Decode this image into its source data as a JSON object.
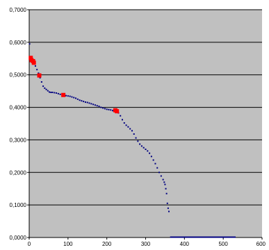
{
  "chart_data": {
    "type": "scatter",
    "title": "",
    "xlabel": "",
    "ylabel": "",
    "xlim": [
      0,
      600
    ],
    "ylim": [
      0,
      0.7
    ],
    "x_ticks": [
      "0",
      "100",
      "200",
      "300",
      "400",
      "500",
      "600"
    ],
    "y_ticks": [
      "0,0000",
      "0,1000",
      "0,2000",
      "0,3000",
      "0,4000",
      "0,5000",
      "0,6000",
      "0,7000"
    ],
    "grid": "horizontal",
    "legend": "none",
    "plot_background": "#c0c0c0",
    "series": [
      {
        "color": "#000080",
        "marker": "small-dot",
        "points": [
          [
            1,
            0.595
          ],
          [
            4,
            0.556
          ],
          [
            8,
            0.548
          ],
          [
            12,
            0.536
          ],
          [
            16,
            0.527
          ],
          [
            20,
            0.516
          ],
          [
            24,
            0.505
          ],
          [
            28,
            0.491
          ],
          [
            32,
            0.478
          ],
          [
            36,
            0.465
          ],
          [
            40,
            0.459
          ],
          [
            44,
            0.455
          ],
          [
            48,
            0.451
          ],
          [
            52,
            0.447
          ],
          [
            56,
            0.446
          ],
          [
            60,
            0.446
          ],
          [
            65,
            0.445
          ],
          [
            70,
            0.444
          ],
          [
            75,
            0.442
          ],
          [
            80,
            0.44
          ],
          [
            85,
            0.438
          ],
          [
            90,
            0.437
          ],
          [
            95,
            0.436
          ],
          [
            100,
            0.435
          ],
          [
            105,
            0.434
          ],
          [
            110,
            0.432
          ],
          [
            115,
            0.43
          ],
          [
            120,
            0.428
          ],
          [
            125,
            0.425
          ],
          [
            130,
            0.422
          ],
          [
            135,
            0.42
          ],
          [
            140,
            0.418
          ],
          [
            145,
            0.416
          ],
          [
            150,
            0.415
          ],
          [
            155,
            0.413
          ],
          [
            160,
            0.411
          ],
          [
            165,
            0.409
          ],
          [
            170,
            0.407
          ],
          [
            175,
            0.405
          ],
          [
            180,
            0.403
          ],
          [
            185,
            0.4
          ],
          [
            190,
            0.398
          ],
          [
            195,
            0.396
          ],
          [
            200,
            0.394
          ],
          [
            205,
            0.393
          ],
          [
            210,
            0.392
          ],
          [
            215,
            0.39
          ],
          [
            220,
            0.389
          ],
          [
            225,
            0.388
          ],
          [
            230,
            0.383
          ],
          [
            235,
            0.374
          ],
          [
            240,
            0.362
          ],
          [
            245,
            0.352
          ],
          [
            250,
            0.345
          ],
          [
            255,
            0.34
          ],
          [
            260,
            0.334
          ],
          [
            265,
            0.328
          ],
          [
            270,
            0.318
          ],
          [
            275,
            0.306
          ],
          [
            280,
            0.296
          ],
          [
            285,
            0.287
          ],
          [
            290,
            0.281
          ],
          [
            295,
            0.276
          ],
          [
            300,
            0.271
          ],
          [
            305,
            0.266
          ],
          [
            310,
            0.259
          ],
          [
            315,
            0.249
          ],
          [
            320,
            0.238
          ],
          [
            325,
            0.227
          ],
          [
            330,
            0.214
          ],
          [
            335,
            0.2
          ],
          [
            340,
            0.189
          ],
          [
            345,
            0.178
          ],
          [
            348,
            0.17
          ],
          [
            350,
            0.163
          ],
          [
            352,
            0.15
          ],
          [
            354,
            0.135
          ],
          [
            356,
            0.105
          ],
          [
            358,
            0.09
          ],
          [
            360,
            0.08
          ]
        ],
        "baseline_segment": {
          "x": [
            363,
            532
          ],
          "y": 0.0
        }
      },
      {
        "color": "#ff0000",
        "marker": "square",
        "points": [
          [
            4,
            0.552
          ],
          [
            6,
            0.545
          ],
          [
            10,
            0.542
          ],
          [
            12,
            0.537
          ],
          [
            26,
            0.498
          ],
          [
            88,
            0.438
          ],
          [
            222,
            0.391
          ],
          [
            226,
            0.388
          ]
        ]
      }
    ]
  }
}
